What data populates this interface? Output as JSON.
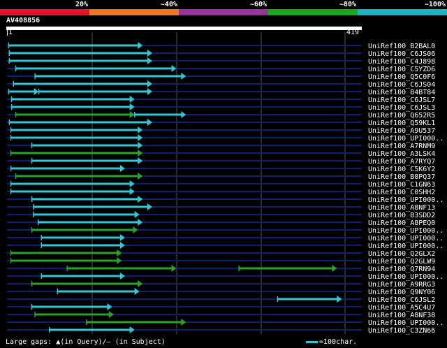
{
  "colors": {
    "background": "#000000",
    "cyan": "#2ec8d8",
    "green": "#29a329",
    "gridline": "#555555",
    "rowline": "#0a1f7a",
    "text": "#ffffff"
  },
  "legend": {
    "labels": [
      "20%",
      "~40%",
      "~60%",
      "~80%",
      "~100%"
    ],
    "colors": [
      "#e8122c",
      "#ee7722",
      "#993399",
      "#1aa61a",
      "#18b5c2"
    ]
  },
  "query": {
    "name": "AV408856",
    "start": "1",
    "end": "419",
    "length": 419
  },
  "hits": [
    {
      "name": "UniRef100_B2BAL0",
      "segments": [
        {
          "start": 3,
          "end": 420,
          "color": "cyan"
        }
      ]
    },
    {
      "name": "UniRef100_C6JS06",
      "segments": [
        {
          "start": 5,
          "end": 450,
          "color": "cyan"
        }
      ]
    },
    {
      "name": "UniRef100_C4J898",
      "segments": [
        {
          "start": 5,
          "end": 450,
          "color": "cyan"
        }
      ]
    },
    {
      "name": "UniRef100_C5YZD6",
      "segments": [
        {
          "start": 25,
          "end": 525,
          "color": "cyan"
        }
      ]
    },
    {
      "name": "UniRef100_Q5C0F6",
      "segments": [
        {
          "start": 85,
          "end": 555,
          "color": "cyan"
        }
      ]
    },
    {
      "name": "UniRef100_C6JS04",
      "segments": [
        {
          "start": 18,
          "end": 450,
          "color": "cyan"
        }
      ]
    },
    {
      "name": "UniRef100_B4BT84",
      "segments": [
        {
          "start": 3,
          "end": 97,
          "color": "cyan"
        },
        {
          "start": 97,
          "end": 450,
          "color": "cyan"
        }
      ]
    },
    {
      "name": "UniRef100_C6JSL7",
      "segments": [
        {
          "start": 12,
          "end": 395,
          "color": "cyan"
        }
      ]
    },
    {
      "name": "UniRef100_C6JSL3",
      "segments": [
        {
          "start": 12,
          "end": 395,
          "color": "cyan"
        }
      ]
    },
    {
      "name": "UniRef100_Q652R5",
      "segments": [
        {
          "start": 25,
          "end": 395,
          "color": "green"
        },
        {
          "start": 395,
          "end": 555,
          "color": "cyan"
        }
      ]
    },
    {
      "name": "UniRef100_Q59KL1",
      "segments": [
        {
          "start": 5,
          "end": 450,
          "color": "cyan"
        }
      ]
    },
    {
      "name": "UniRef100_A9U537",
      "segments": [
        {
          "start": 10,
          "end": 420,
          "color": "cyan"
        }
      ]
    },
    {
      "name": "UniRef100_UPI000..",
      "segments": [
        {
          "start": 10,
          "end": 420,
          "color": "cyan"
        }
      ]
    },
    {
      "name": "UniRef100_A7RNM9",
      "segments": [
        {
          "start": 75,
          "end": 420,
          "color": "cyan"
        }
      ]
    },
    {
      "name": "UniRef100_A3LSK4",
      "segments": [
        {
          "start": 10,
          "end": 420,
          "color": "green"
        }
      ]
    },
    {
      "name": "UniRef100_A7RYQ7",
      "segments": [
        {
          "start": 75,
          "end": 420,
          "color": "cyan"
        }
      ]
    },
    {
      "name": "UniRef100_C5K6Y2",
      "segments": [
        {
          "start": 10,
          "end": 365,
          "color": "cyan"
        }
      ]
    },
    {
      "name": "UniRef100_B8PQ37",
      "segments": [
        {
          "start": 25,
          "end": 420,
          "color": "green"
        }
      ]
    },
    {
      "name": "UniRef100_C1GN63",
      "segments": [
        {
          "start": 10,
          "end": 395,
          "color": "cyan"
        }
      ]
    },
    {
      "name": "UniRef100_C0SHH2",
      "segments": [
        {
          "start": 10,
          "end": 395,
          "color": "cyan"
        }
      ]
    },
    {
      "name": "UniRef100_UPI000..",
      "segments": [
        {
          "start": 75,
          "end": 420,
          "color": "cyan"
        }
      ]
    },
    {
      "name": "UniRef100_A8NF13",
      "segments": [
        {
          "start": 80,
          "end": 450,
          "color": "cyan"
        }
      ]
    },
    {
      "name": "UniRef100_B3SDD2",
      "segments": [
        {
          "start": 80,
          "end": 410,
          "color": "cyan"
        }
      ]
    },
    {
      "name": "UniRef100_A8PEQ0",
      "segments": [
        {
          "start": 95,
          "end": 420,
          "color": "cyan"
        }
      ]
    },
    {
      "name": "UniRef100_UPI000..",
      "segments": [
        {
          "start": 75,
          "end": 405,
          "color": "green"
        }
      ]
    },
    {
      "name": "UniRef100_UPI000..",
      "segments": [
        {
          "start": 105,
          "end": 365,
          "color": "cyan"
        }
      ]
    },
    {
      "name": "UniRef100_UPI000..",
      "segments": [
        {
          "start": 105,
          "end": 365,
          "color": "cyan"
        }
      ]
    },
    {
      "name": "UniRef100_Q2GLX2",
      "segments": [
        {
          "start": 10,
          "end": 355,
          "color": "green"
        }
      ]
    },
    {
      "name": "UniRef100_Q2GLW9",
      "segments": [
        {
          "start": 10,
          "end": 355,
          "color": "green"
        }
      ]
    },
    {
      "name": "UniRef100_Q7RN94",
      "segments": [
        {
          "start": 185,
          "end": 525,
          "color": "green"
        },
        {
          "start": 720,
          "end": 1025,
          "color": "green"
        }
      ]
    },
    {
      "name": "UniRef100_UPI000..",
      "segments": [
        {
          "start": 105,
          "end": 365,
          "color": "cyan"
        }
      ]
    },
    {
      "name": "UniRef100_A9RRG3",
      "segments": [
        {
          "start": 75,
          "end": 420,
          "color": "green"
        }
      ]
    },
    {
      "name": "UniRef100_Q9NY06",
      "segments": [
        {
          "start": 155,
          "end": 410,
          "color": "cyan"
        }
      ]
    },
    {
      "name": "UniRef100_C6JSL2",
      "segments": [
        {
          "start": 840,
          "end": 1040,
          "color": "cyan"
        }
      ]
    },
    {
      "name": "UniRef100_A5C4U7",
      "segments": [
        {
          "start": 75,
          "end": 325,
          "color": "cyan"
        }
      ]
    },
    {
      "name": "UniRef100_A8NF38",
      "segments": [
        {
          "start": 85,
          "end": 330,
          "color": "green"
        }
      ]
    },
    {
      "name": "UniRef100_UPI000..",
      "segments": [
        {
          "start": 245,
          "end": 555,
          "color": "green"
        }
      ]
    },
    {
      "name": "UniRef100_C3ZN66",
      "segments": [
        {
          "start": 130,
          "end": 395,
          "color": "cyan"
        }
      ]
    }
  ],
  "footer": {
    "gaps_prefix": "Large gaps:",
    "gaps_symbol": "▲",
    "gaps_text": "(in Query)/– (in Subject)",
    "scale_label": "=100char."
  }
}
